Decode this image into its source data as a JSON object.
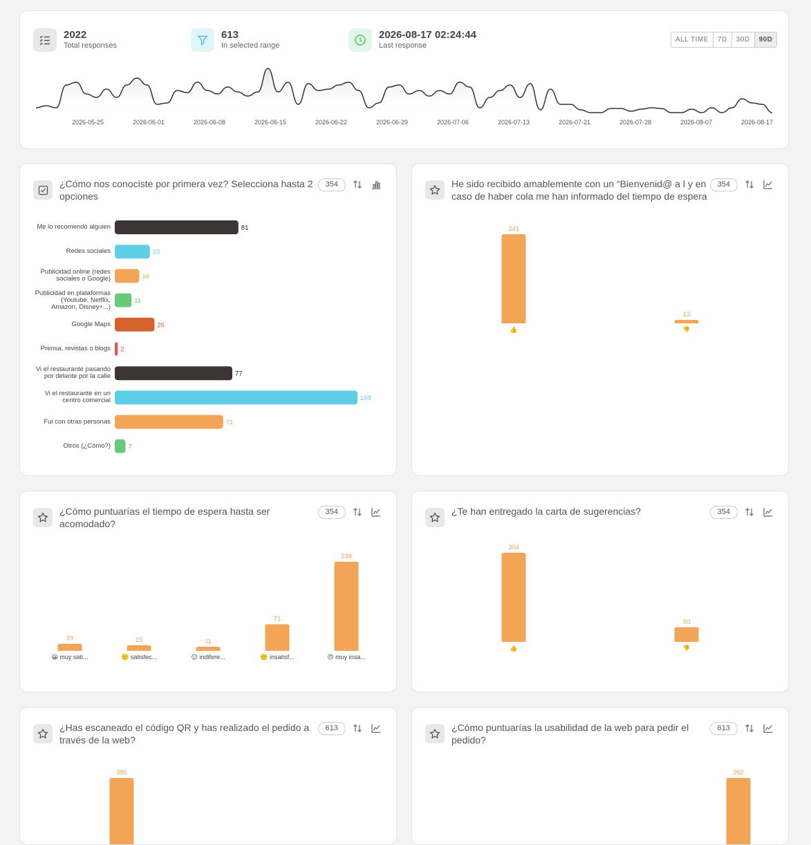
{
  "summary": {
    "stats": [
      {
        "value": "2022",
        "label": "Total responses",
        "icon": "list"
      },
      {
        "value": "613",
        "label": "In selected range",
        "icon": "filter"
      },
      {
        "value": "2026-08-17 02:24:44",
        "label": "Last response",
        "icon": "clock"
      }
    ],
    "ranges": [
      "ALL TIME",
      "7D",
      "30D",
      "90D"
    ],
    "selected_range_index": 3,
    "timeline": {
      "dates": [
        "2026-05-25",
        "2026-06-01",
        "2026-06-08",
        "2026-06-15",
        "2026-06-22",
        "2026-06-29",
        "2026-07-06",
        "2026-07-13",
        "2026-07-21",
        "2026-07-28",
        "2026-08-07",
        "2026-08-17"
      ],
      "values": [
        7,
        10,
        7,
        40,
        44,
        27,
        22,
        34,
        22,
        40,
        50,
        40,
        12,
        14,
        32,
        29,
        44,
        32,
        27,
        37,
        30,
        24,
        30,
        64,
        30,
        44,
        12,
        42,
        32,
        34,
        40,
        44,
        32,
        7,
        14,
        37,
        40,
        27,
        32,
        24,
        32,
        27,
        44,
        37,
        7,
        22,
        32,
        40,
        22,
        42,
        4,
        34,
        12,
        12,
        4,
        0,
        0,
        6,
        6,
        2,
        5,
        7,
        6,
        0,
        0,
        5,
        0,
        7,
        0,
        7,
        20,
        14,
        12,
        0
      ]
    }
  },
  "questions": [
    {
      "title": "¿Cómo nos conociste por primera vez? Selecciona hasta 2 opciones",
      "responses": 354,
      "icon": "check",
      "chart": {
        "type": "hbar",
        "categories": [
          "Me lo recomendó alguien",
          "Redes sociales",
          "Publicidad online (redes sociales o Google)",
          "Publicidad en plataformas (Youtube, Netflix, Amazon, Disney+...)",
          "Google Maps",
          "Prensa, revistas o blogs",
          "Vi el restaurante pasando por delante por la calle",
          "Vi el restaurante en un centro comercial",
          "Fui con otras personas",
          "Otros (¿Cómo?)"
        ],
        "values": [
          81,
          23,
          16,
          11,
          26,
          2,
          77,
          159,
          71,
          7
        ],
        "colors": [
          "#3d3533",
          "#5ecde6",
          "#f2a556",
          "#67c97a",
          "#d4622d",
          "#e05a4a",
          "#3d3533",
          "#5ecde6",
          "#f2a556",
          "#67c97a"
        ]
      }
    },
    {
      "title": "He sido recibido amablemente con un “Bienvenid@ a l y en caso de haber cola me han informado del tiempo de espera",
      "responses": 354,
      "icon": "star",
      "chart": {
        "type": "bar",
        "categories": [
          "👍",
          "👎"
        ],
        "values": [
          341,
          13
        ],
        "color": "#f2a556"
      }
    },
    {
      "title": "¿Cómo puntuarías el tiempo de espera hasta ser acomodado?",
      "responses": 354,
      "icon": "star",
      "chart": {
        "type": "bar",
        "categories": [
          "😀 muy sati...",
          "🙂 satisfec...",
          "😐 indifere...",
          "🙁 insatisf...",
          "😠 muy insa..."
        ],
        "values": [
          19,
          15,
          11,
          71,
          238
        ],
        "color": "#f2a556"
      }
    },
    {
      "title": "¿Te han entregado la carta de sugerencias?",
      "responses": 354,
      "icon": "star",
      "chart": {
        "type": "bar",
        "categories": [
          "👍",
          "👎"
        ],
        "values": [
          304,
          50
        ],
        "color": "#f2a556"
      }
    },
    {
      "title": "¿Has escaneado el código QR y has realizado el pedido a través de la web?",
      "responses": 613,
      "icon": "star",
      "chart": {
        "type": "bar",
        "categories": [
          null,
          null
        ],
        "values": [
          385,
          null
        ],
        "color": "#f2a556"
      }
    },
    {
      "title": "¿Cómo puntuarías la usabilidad de la web para pedir el pedido?",
      "responses": 613,
      "icon": "star",
      "chart": {
        "type": "bar",
        "categories": [
          null,
          null,
          null,
          null,
          null
        ],
        "values": [
          null,
          null,
          null,
          null,
          262
        ],
        "color": "#f2a556"
      }
    }
  ]
}
